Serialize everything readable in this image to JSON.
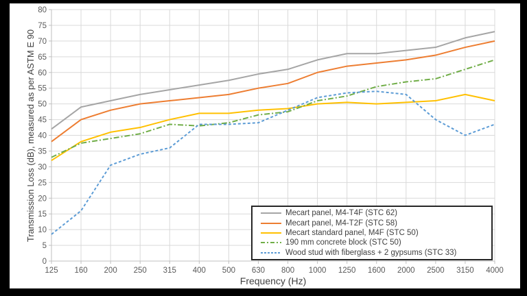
{
  "window": {
    "letterbox_color": "#000000",
    "panel_background": "#ffffff"
  },
  "colors": {
    "gridline": "#d9d9d9",
    "axis_line": "#bfbfbf",
    "tick_label": "#595959",
    "axis_title": "#404040",
    "legend_border": "#262626"
  },
  "chart_data": {
    "type": "line",
    "title": "",
    "xlabel": "Frequency (Hz)",
    "ylabel": "Transmission Loss (dB), measured as per ASTM E 90",
    "ylim": [
      0,
      80
    ],
    "ytick_step": 5,
    "grid": true,
    "legend_position": "inside bottom-right",
    "categories": [
      125,
      160,
      200,
      250,
      315,
      400,
      500,
      630,
      800,
      1000,
      1250,
      1600,
      2000,
      2500,
      3150,
      4000
    ],
    "series": [
      {
        "name": "Mecart panel, M4-T4F (STC 62)",
        "color": "#a5a5a5",
        "dash": "solid",
        "values": [
          42,
          49,
          51,
          53,
          54.5,
          56,
          57.5,
          59.5,
          61,
          64,
          66,
          66,
          67,
          68,
          71,
          73
        ]
      },
      {
        "name": "Mecart panel, M4-T2F (STC 58)",
        "color": "#ed7d31",
        "dash": "solid",
        "values": [
          38,
          45,
          48,
          50,
          51,
          52,
          53,
          55,
          56.5,
          60,
          62,
          63,
          64,
          65.5,
          68,
          70
        ]
      },
      {
        "name": "Mecart standard panel, M4F (STC 50)",
        "color": "#ffc000",
        "dash": "solid",
        "values": [
          32,
          38,
          41,
          42.5,
          45,
          47,
          47,
          48,
          48.5,
          50,
          50.5,
          50,
          50.5,
          51,
          53,
          51
        ]
      },
      {
        "name": "190 mm concrete block (STC 50)",
        "color": "#70ad47",
        "dash": "dashdot",
        "values": [
          33,
          37.5,
          39,
          40.5,
          43.5,
          43,
          44,
          46.5,
          47.5,
          51,
          52.5,
          55.5,
          57,
          58,
          61,
          64
        ]
      },
      {
        "name": "Wood stud with fiberglass + 2 gypsums (STC 33)",
        "color": "#5b9bd5",
        "dash": "dashed",
        "values": [
          8.5,
          16,
          30.5,
          34,
          36,
          43.5,
          43.5,
          44,
          48,
          52,
          53.5,
          54,
          53,
          45,
          40,
          43.5
        ]
      }
    ]
  }
}
